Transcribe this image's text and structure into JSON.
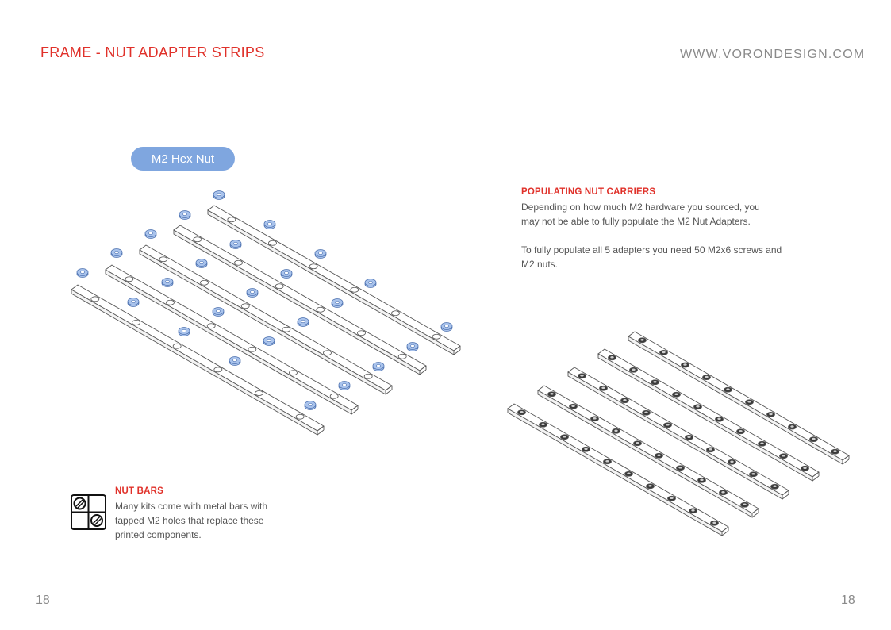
{
  "header": {
    "title": "FRAME - NUT ADAPTER STRIPS",
    "website": "WWW.VORONDESIGN.COM"
  },
  "callout": {
    "label": "M2 Hex Nut",
    "color": "#7fa6df"
  },
  "populating": {
    "heading": "POPULATING NUT CARRIERS",
    "paragraph1": "Depending on how much M2 hardware you sourced, you may not be able to fully populate the M2 Nut Adapters.",
    "paragraph2": "To fully populate all 5 adapters you need 50 M2x6 screws and M2 nuts."
  },
  "nut_bars": {
    "heading": "NUT BARS",
    "paragraph": "Many kits come with metal bars with tapped M2 holes that replace these printed components.",
    "icon": "nut-bar-icon"
  },
  "footer": {
    "page_left": "18",
    "page_right": "18"
  },
  "colors": {
    "accent": "#e0312a",
    "nut_fill": "#a9c3ec",
    "nut_stroke": "#4a6fae"
  }
}
